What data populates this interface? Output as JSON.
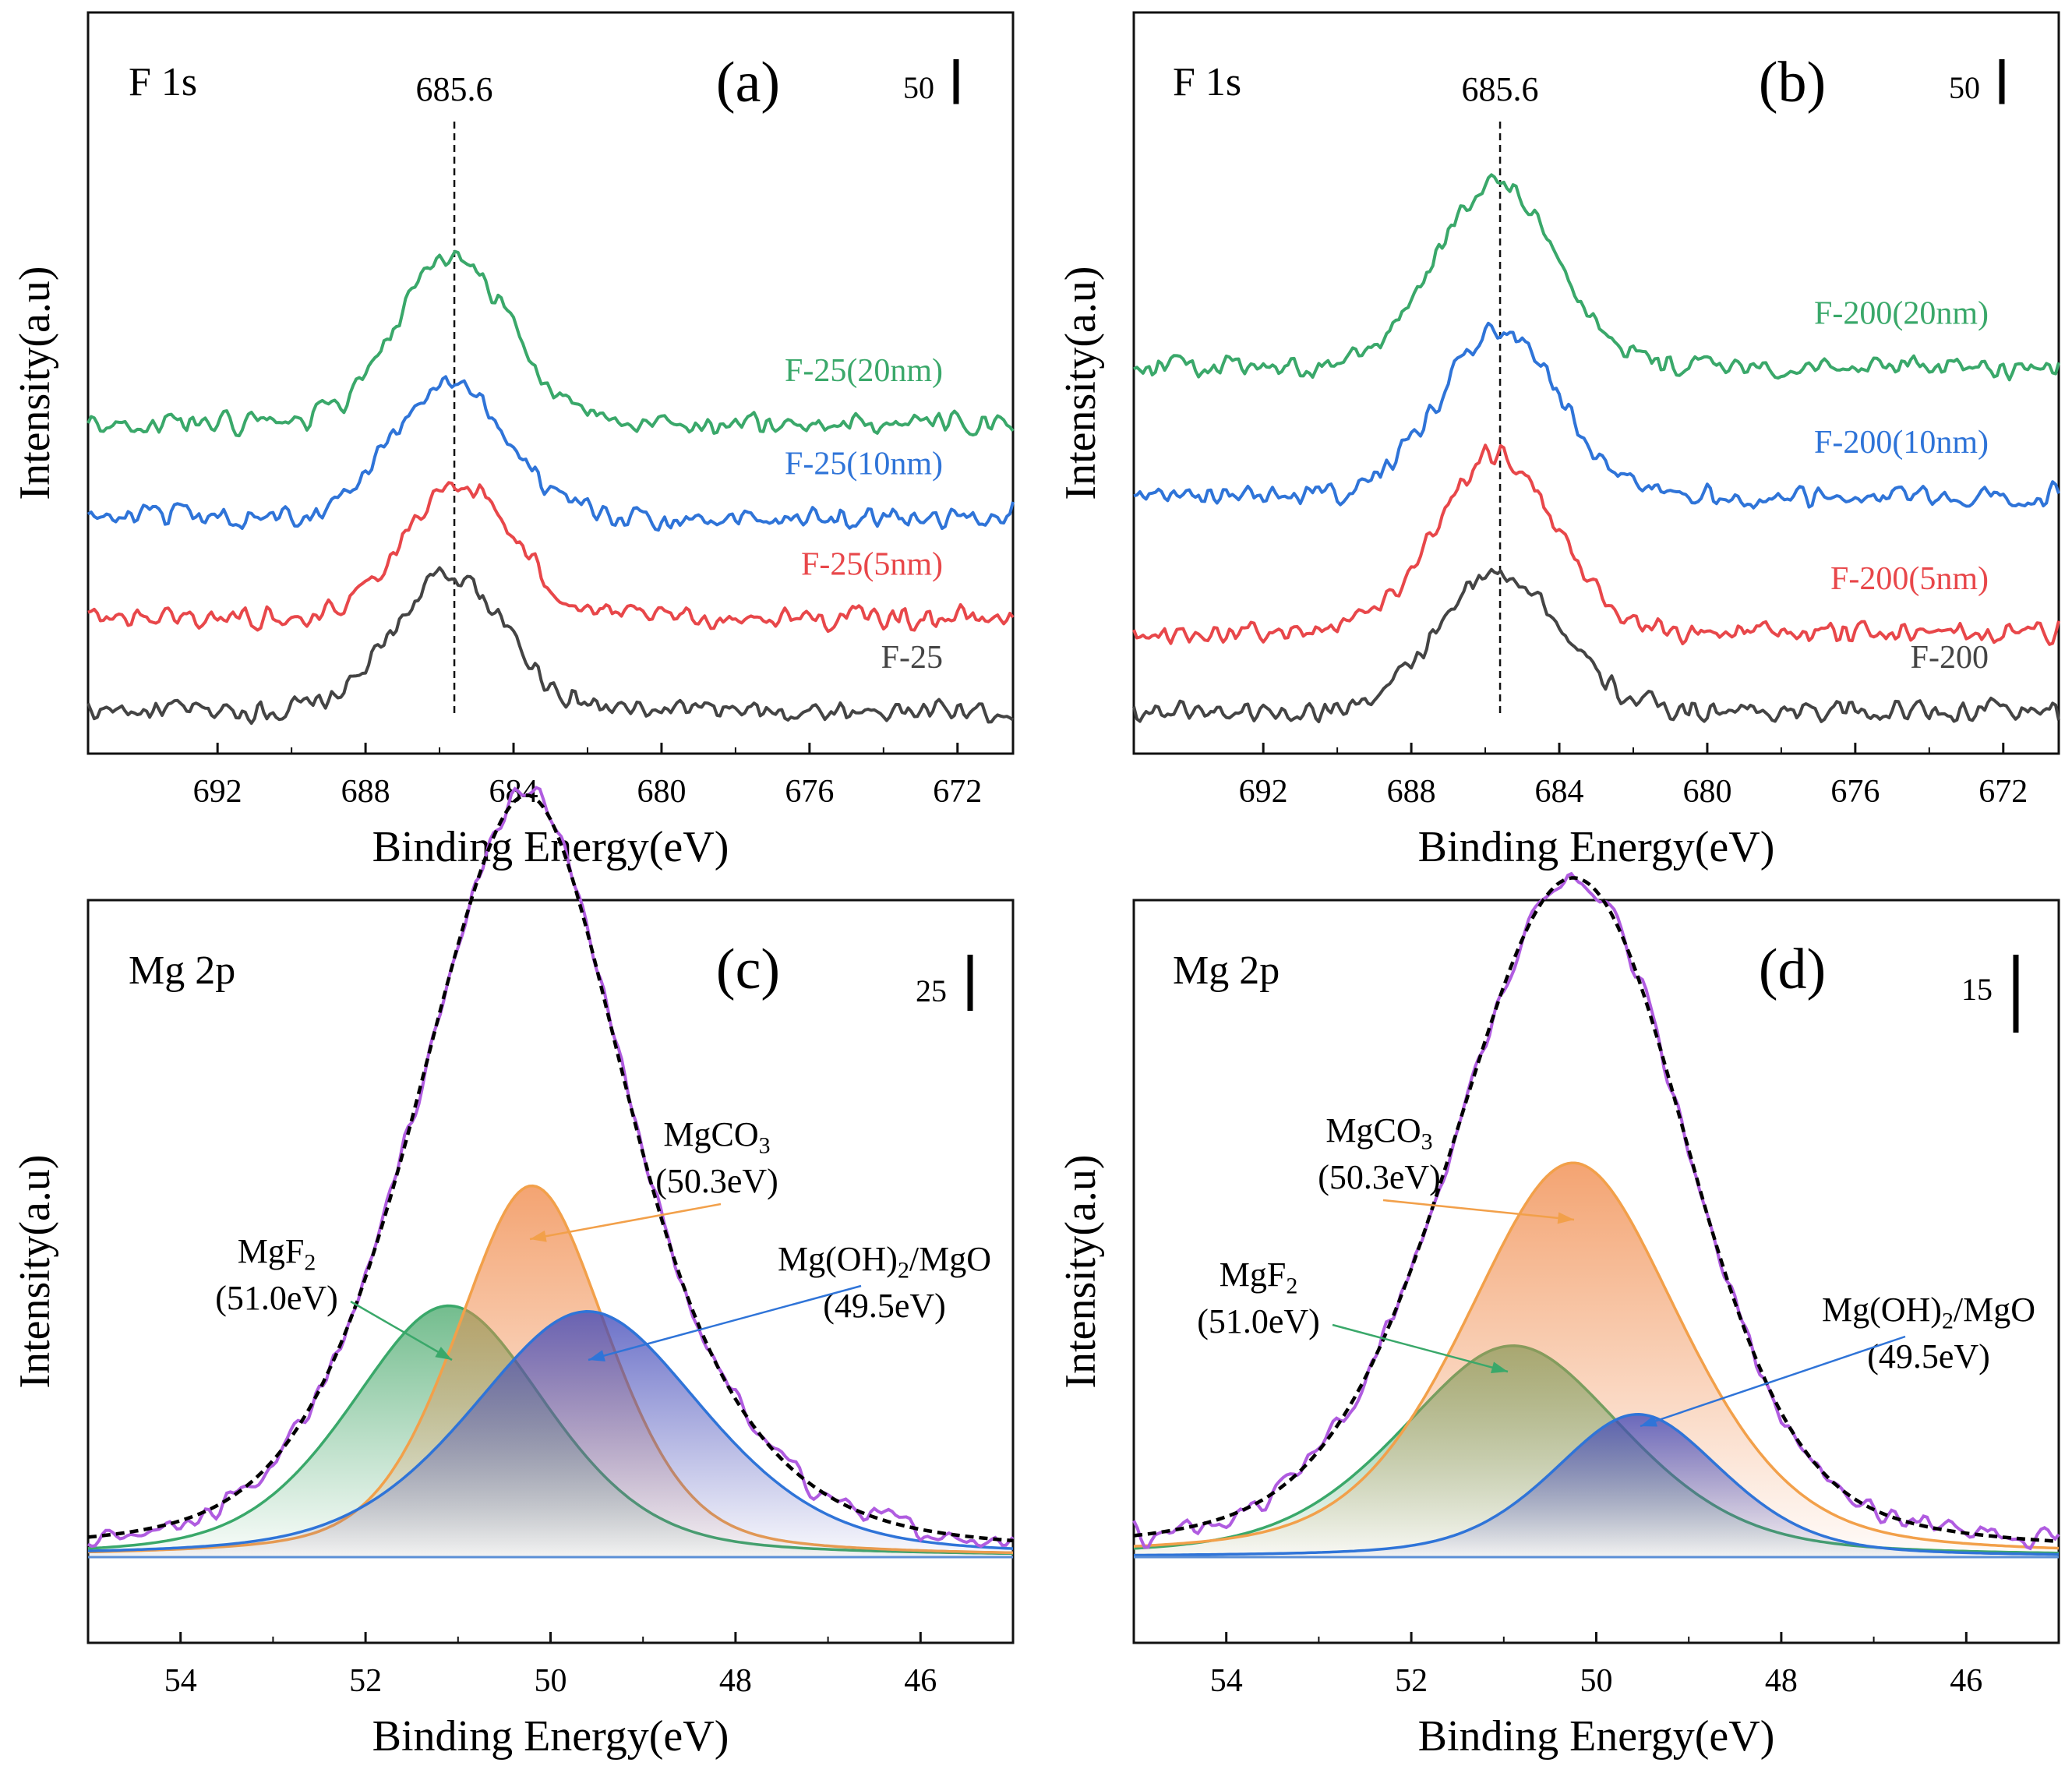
{
  "figure": {
    "colors": {
      "black": "#444444",
      "red": "#e8474a",
      "blue": "#2f74d8",
      "green": "#3aa86a",
      "orange": "#f2a04a",
      "purple": "#b05ce0",
      "mgf2_fill": "#4caa6e",
      "mgco3_fill": "#f08a4a",
      "mgoh_fill": "#4148b8"
    }
  },
  "chart_data": [
    {
      "id": "a",
      "type": "line",
      "panel_label": "(a)",
      "title": "F 1s",
      "xlabel": "Binding Energy(eV)",
      "ylabel": "Intensity(a.u)",
      "xlim": [
        695.5,
        670.5
      ],
      "xticks": [
        692,
        688,
        684,
        680,
        676,
        672
      ],
      "xtick_labels": [
        "692",
        "688",
        "684",
        "680",
        "676",
        "672"
      ],
      "scale_bar": {
        "label": "50",
        "value": 50
      },
      "reference_line": {
        "x": 685.6,
        "label": "685.6"
      },
      "series": [
        {
          "name": "F-25",
          "label": "F-25",
          "color": "black",
          "baseline": 0,
          "peak_center": 685.7,
          "peak_height": 190,
          "peak_width": 1.5
        },
        {
          "name": "F-25(5nm)",
          "label": "F-25(5nm)",
          "color": "red",
          "baseline": 130,
          "peak_center": 685.5,
          "peak_height": 185,
          "peak_width": 1.5
        },
        {
          "name": "F-25(10nm)",
          "label": "F-25(10nm)",
          "color": "blue",
          "baseline": 270,
          "peak_center": 685.7,
          "peak_height": 190,
          "peak_width": 1.5
        },
        {
          "name": "F-25(20nm)",
          "label": "F-25(20nm)",
          "color": "green",
          "baseline": 400,
          "peak_center": 685.6,
          "peak_height": 235,
          "peak_width": 1.5
        }
      ]
    },
    {
      "id": "b",
      "type": "line",
      "panel_label": "(b)",
      "title": "F 1s",
      "xlabel": "Binding Energy(eV)",
      "ylabel": "Intensity(a.u)",
      "xlim": [
        695.5,
        670.5
      ],
      "xticks": [
        692,
        688,
        684,
        680,
        676,
        672
      ],
      "xtick_labels": [
        "692",
        "688",
        "684",
        "680",
        "676",
        "672"
      ],
      "scale_bar": {
        "label": "50",
        "value": 50
      },
      "reference_line": {
        "x": 685.6,
        "label": "685.6"
      },
      "series": [
        {
          "name": "F-200",
          "label": "F-200",
          "color": "black",
          "baseline": 0,
          "peak_center": 685.6,
          "peak_height": 195,
          "peak_width": 1.6
        },
        {
          "name": "F-200(5nm)",
          "label": "F-200(5nm)",
          "color": "red",
          "baseline": 110,
          "peak_center": 685.7,
          "peak_height": 245,
          "peak_width": 1.6
        },
        {
          "name": "F-200(10nm)",
          "label": "F-200(10nm)",
          "color": "blue",
          "baseline": 300,
          "peak_center": 685.6,
          "peak_height": 230,
          "peak_width": 1.6
        },
        {
          "name": "F-200(20nm)",
          "label": "F-200(20nm)",
          "color": "green",
          "baseline": 480,
          "peak_center": 685.7,
          "peak_height": 255,
          "peak_width": 1.6
        }
      ]
    },
    {
      "id": "c",
      "type": "area",
      "panel_label": "(c)",
      "title": "Mg 2p",
      "xlabel": "Binding Energy(eV)",
      "ylabel": "Intensity(a.u)",
      "xlim": [
        55,
        45
      ],
      "ylim": [
        -15,
        115
      ],
      "xticks": [
        54,
        52,
        50,
        48,
        46
      ],
      "xtick_labels": [
        "54",
        "52",
        "50",
        "48",
        "46"
      ],
      "scale_bar": {
        "label": "25",
        "value": 25
      },
      "components": [
        {
          "name": "MgF2",
          "label_main": "MgF",
          "label_sub": "2",
          "label_tail": "",
          "energy_label": "(51.0eV)",
          "center": 51.1,
          "height": 44,
          "width": 1.1,
          "color": "green",
          "fill": "mgf2_fill"
        },
        {
          "name": "MgCO3",
          "label_main": "MgCO",
          "label_sub": "3",
          "label_tail": "",
          "energy_label": "(50.3eV)",
          "center": 50.2,
          "height": 65,
          "width": 0.85,
          "color": "orange",
          "fill": "mgco3_fill"
        },
        {
          "name": "Mg(OH)2/MgO",
          "label_main": "Mg(OH)",
          "label_sub": "2",
          "label_tail": "/MgO",
          "energy_label": "(49.5eV)",
          "center": 49.6,
          "height": 43,
          "width": 1.3,
          "color": "blue",
          "fill": "mgoh_fill"
        }
      ],
      "envelope": {
        "name": "fit",
        "color": "black",
        "style": "dashed"
      },
      "raw": {
        "name": "raw",
        "color": "purple"
      }
    },
    {
      "id": "d",
      "type": "area",
      "panel_label": "(d)",
      "title": "Mg 2p",
      "xlabel": "Binding Energy(eV)",
      "ylabel": "Intensity(a.u)",
      "xlim": [
        55,
        45
      ],
      "ylim": [
        -15,
        115
      ],
      "xticks": [
        54,
        52,
        50,
        48,
        46
      ],
      "xtick_labels": [
        "54",
        "52",
        "50",
        "48",
        "46"
      ],
      "scale_bar": {
        "label": "15",
        "value": 15
      },
      "components": [
        {
          "name": "MgF2",
          "label_main": "MgF",
          "label_sub": "2",
          "label_tail": "",
          "energy_label": "(51.0eV)",
          "center": 50.9,
          "height": 37,
          "width": 1.25,
          "color": "green",
          "fill": "mgf2_fill"
        },
        {
          "name": "MgCO3",
          "label_main": "MgCO",
          "label_sub": "3",
          "label_tail": "",
          "energy_label": "(50.3eV)",
          "center": 50.25,
          "height": 69,
          "width": 1.2,
          "color": "orange",
          "fill": "mgco3_fill"
        },
        {
          "name": "Mg(OH)2/MgO",
          "label_main": "Mg(OH)",
          "label_sub": "2",
          "label_tail": "/MgO",
          "energy_label": "(49.5eV)",
          "center": 49.55,
          "height": 25,
          "width": 0.95,
          "color": "blue",
          "fill": "mgoh_fill"
        }
      ],
      "envelope": {
        "name": "fit",
        "color": "black",
        "style": "dashed"
      },
      "raw": {
        "name": "raw",
        "color": "purple"
      }
    }
  ]
}
